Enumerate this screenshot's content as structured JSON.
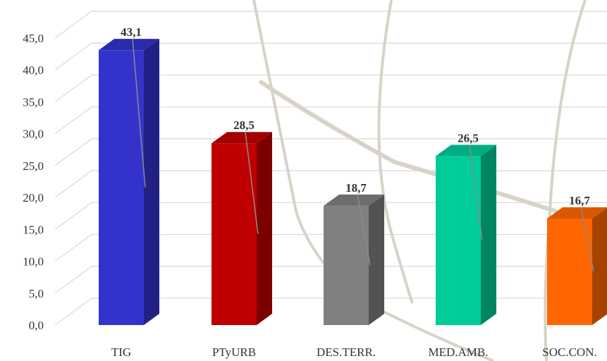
{
  "chart_data": {
    "type": "bar",
    "style": "3d-column",
    "categories": [
      "TIG",
      "PTyURB",
      "DES.TERR.",
      "MED.AMB.",
      "SOC.CON."
    ],
    "values": [
      43.1,
      28.5,
      18.7,
      26.5,
      16.7
    ],
    "data_labels": [
      "43,1",
      "28,5",
      "18,7",
      "26,5",
      "16,7"
    ],
    "colors": [
      "#3333cc",
      "#c00000",
      "#808080",
      "#00cc99",
      "#ff6600"
    ],
    "ylim": [
      0,
      45
    ],
    "yticks": [
      0,
      5,
      10,
      15,
      20,
      25,
      30,
      35,
      40,
      45
    ],
    "ytick_labels": [
      "0,0",
      "5,0",
      "10,0",
      "15,0",
      "20,0",
      "25,0",
      "30,0",
      "35,0",
      "40,0",
      "45,0"
    ],
    "grid": true,
    "legend": "none",
    "title": "",
    "xlabel": "",
    "ylabel": ""
  }
}
